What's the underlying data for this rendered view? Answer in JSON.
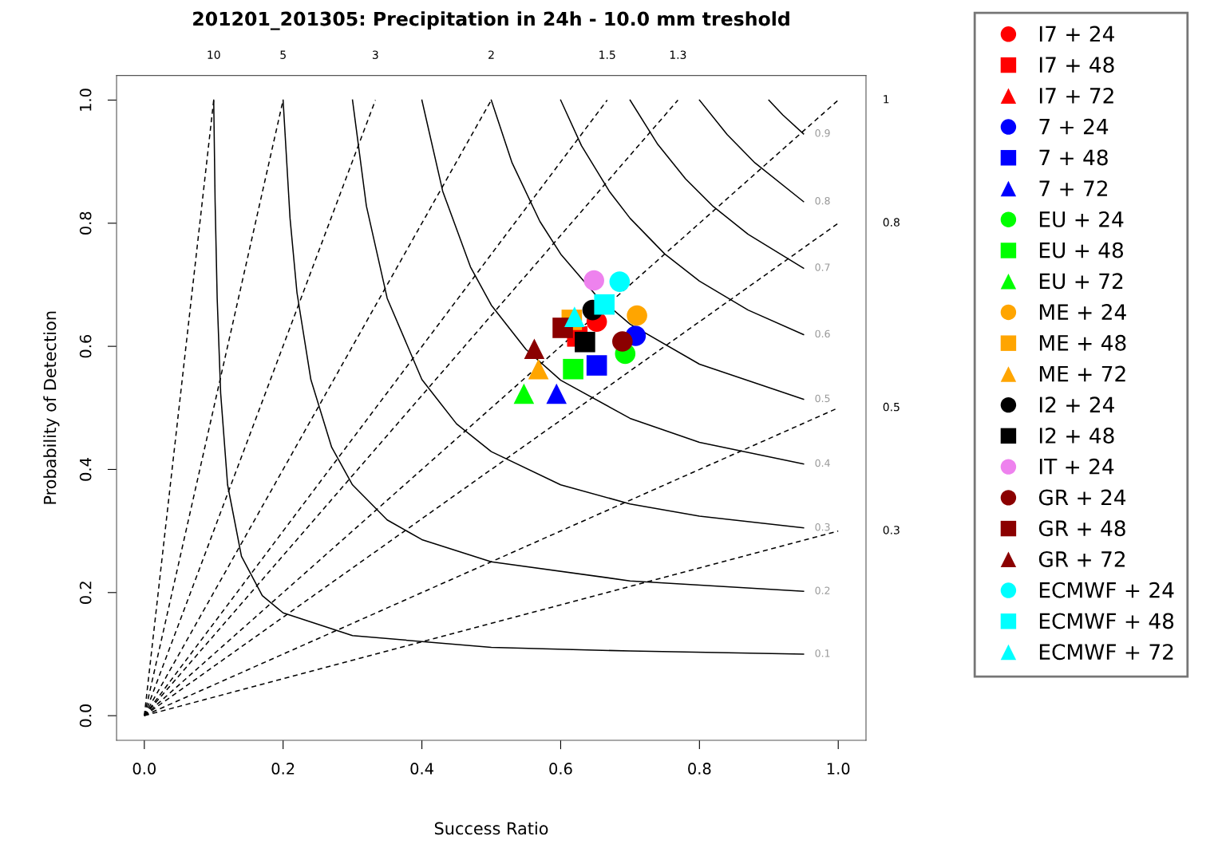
{
  "chart_data": {
    "type": "scatter",
    "title": "201201_201305: Precipitation in 24h - 10.0 mm treshold",
    "xlabel": "Success Ratio",
    "ylabel": "Probability of Detection",
    "xlim": [
      -0.04,
      1.04
    ],
    "ylim": [
      -0.04,
      1.04
    ],
    "xticks": [
      {
        "value": 0,
        "label": "0.0"
      },
      {
        "value": 0.2,
        "label": "0.2"
      },
      {
        "value": 0.4,
        "label": "0.4"
      },
      {
        "value": 0.6,
        "label": "0.6"
      },
      {
        "value": 0.8,
        "label": "0.8"
      },
      {
        "value": 1,
        "label": "1.0"
      }
    ],
    "yticks": [
      {
        "value": 0,
        "label": "0.0"
      },
      {
        "value": 0.2,
        "label": "0.2"
      },
      {
        "value": 0.4,
        "label": "0.4"
      },
      {
        "value": 0.6,
        "label": "0.6"
      },
      {
        "value": 0.8,
        "label": "0.8"
      },
      {
        "value": 1,
        "label": "1.0"
      }
    ],
    "grid": false,
    "legend": "right",
    "series": [
      {
        "type": "line",
        "color": "#000000",
        "line_style": "dashed",
        "x": [
          0,
          0.1
        ],
        "values": [
          0,
          1
        ]
      },
      {
        "type": "line",
        "color": "#000000",
        "line_style": "dashed",
        "x": [
          0,
          0.2
        ],
        "values": [
          0,
          1
        ]
      },
      {
        "type": "line",
        "color": "#000000",
        "line_style": "dashed",
        "x": [
          0,
          0.333
        ],
        "values": [
          0,
          1
        ]
      },
      {
        "type": "line",
        "color": "#000000",
        "line_style": "dashed",
        "x": [
          0,
          0.5
        ],
        "values": [
          0,
          1
        ]
      },
      {
        "type": "line",
        "color": "#000000",
        "line_style": "dashed",
        "x": [
          0,
          0.667
        ],
        "values": [
          0,
          1
        ]
      },
      {
        "type": "line",
        "color": "#000000",
        "line_style": "dashed",
        "x": [
          0,
          0.769
        ],
        "values": [
          0,
          1
        ]
      },
      {
        "type": "line",
        "color": "#000000",
        "line_style": "dashed",
        "x": [
          0,
          1
        ],
        "values": [
          0,
          1
        ]
      },
      {
        "type": "line",
        "color": "#000000",
        "line_style": "dashed",
        "x": [
          0,
          1
        ],
        "values": [
          0,
          0.8
        ]
      },
      {
        "type": "line",
        "color": "#000000",
        "line_style": "dashed",
        "x": [
          0,
          1
        ],
        "values": [
          0,
          0.5
        ]
      },
      {
        "type": "line",
        "color": "#000000",
        "line_style": "dashed",
        "x": [
          0,
          1
        ],
        "values": [
          0,
          0.3
        ]
      },
      {
        "type": "line",
        "color": "#000000",
        "line_style": "solid",
        "x": [
          0.1,
          0.102,
          0.105,
          0.11,
          0.12,
          0.14,
          0.17,
          0.2,
          0.3,
          0.5,
          0.7,
          0.95
        ],
        "values": [
          1,
          0.836,
          0.678,
          0.524,
          0.375,
          0.259,
          0.195,
          0.167,
          0.13,
          0.111,
          0.105,
          0.1
        ]
      },
      {
        "type": "line",
        "color": "#000000",
        "line_style": "solid",
        "x": [
          0.2,
          0.21,
          0.22,
          0.24,
          0.27,
          0.3,
          0.35,
          0.4,
          0.5,
          0.7,
          0.95
        ],
        "values": [
          1,
          0.808,
          0.687,
          0.546,
          0.436,
          0.375,
          0.318,
          0.286,
          0.25,
          0.219,
          0.202
        ]
      },
      {
        "type": "line",
        "color": "#000000",
        "line_style": "solid",
        "x": [
          0.3,
          0.32,
          0.35,
          0.4,
          0.45,
          0.5,
          0.6,
          0.7,
          0.8,
          0.95
        ],
        "values": [
          1,
          0.828,
          0.678,
          0.546,
          0.474,
          0.429,
          0.375,
          0.344,
          0.324,
          0.305
        ]
      },
      {
        "type": "line",
        "color": "#000000",
        "line_style": "solid",
        "x": [
          0.4,
          0.43,
          0.47,
          0.5,
          0.55,
          0.6,
          0.7,
          0.8,
          0.95
        ],
        "values": [
          1,
          0.852,
          0.729,
          0.667,
          0.595,
          0.545,
          0.483,
          0.444,
          0.409
        ]
      },
      {
        "type": "line",
        "color": "#000000",
        "line_style": "solid",
        "x": [
          0.5,
          0.53,
          0.57,
          0.6,
          0.65,
          0.7,
          0.8,
          0.95
        ],
        "values": [
          1,
          0.898,
          0.803,
          0.75,
          0.684,
          0.636,
          0.571,
          0.514
        ]
      },
      {
        "type": "line",
        "color": "#000000",
        "line_style": "solid",
        "x": [
          0.6,
          0.63,
          0.67,
          0.7,
          0.75,
          0.8,
          0.87,
          0.95
        ],
        "values": [
          1,
          0.926,
          0.852,
          0.808,
          0.75,
          0.706,
          0.659,
          0.619
        ]
      },
      {
        "type": "line",
        "color": "#000000",
        "line_style": "solid",
        "x": [
          0.7,
          0.74,
          0.78,
          0.82,
          0.87,
          0.95
        ],
        "values": [
          1,
          0.928,
          0.872,
          0.827,
          0.782,
          0.727
        ]
      },
      {
        "type": "line",
        "color": "#000000",
        "line_style": "solid",
        "x": [
          0.8,
          0.84,
          0.88,
          0.95
        ],
        "values": [
          1,
          0.944,
          0.898,
          0.835
        ]
      },
      {
        "type": "line",
        "color": "#000000",
        "line_style": "solid",
        "x": [
          0.9,
          0.92,
          0.95
        ],
        "values": [
          1,
          0.976,
          0.945
        ]
      },
      {
        "name": "I7 + 24",
        "color": "#ff0000",
        "marker": "circle",
        "x": [
          0.652
        ],
        "values": [
          0.64
        ]
      },
      {
        "name": "I7 + 48",
        "color": "#ff0000",
        "marker": "square",
        "x": [
          0.624
        ],
        "values": [
          0.616
        ]
      },
      {
        "name": "I7 + 72",
        "color": "#ff0000",
        "marker": "triangle",
        "x": [
          null
        ],
        "values": [
          null
        ]
      },
      {
        "name": "7 + 24",
        "color": "#0000ff",
        "marker": "circle",
        "x": [
          0.708
        ],
        "values": [
          0.617
        ]
      },
      {
        "name": "7 + 48",
        "color": "#0000ff",
        "marker": "square",
        "x": [
          0.652
        ],
        "values": [
          0.569
        ]
      },
      {
        "name": "7 + 72",
        "color": "#0000ff",
        "marker": "triangle",
        "x": [
          0.594
        ],
        "values": [
          0.523
        ]
      },
      {
        "name": "EU + 24",
        "color": "#00ff00",
        "marker": "circle",
        "x": [
          0.693
        ],
        "values": [
          0.588
        ]
      },
      {
        "name": "EU + 48",
        "color": "#00ff00",
        "marker": "square",
        "x": [
          0.618
        ],
        "values": [
          0.563
        ]
      },
      {
        "name": "EU + 72",
        "color": "#00ff00",
        "marker": "triangle",
        "x": [
          0.547
        ],
        "values": [
          0.523
        ]
      },
      {
        "name": "ME + 24",
        "color": "#ffa500",
        "marker": "circle",
        "x": [
          0.71
        ],
        "values": [
          0.65
        ]
      },
      {
        "name": "ME + 48",
        "color": "#ffa500",
        "marker": "square",
        "x": [
          0.616
        ],
        "values": [
          0.643
        ]
      },
      {
        "name": "ME + 72",
        "color": "#ffa500",
        "marker": "triangle",
        "x": [
          0.568
        ],
        "values": [
          0.563
        ]
      },
      {
        "name": "I2 + 24",
        "color": "#000000",
        "marker": "circle",
        "x": [
          0.646
        ],
        "values": [
          0.659
        ]
      },
      {
        "name": "I2 + 48",
        "color": "#000000",
        "marker": "square",
        "x": [
          0.635
        ],
        "values": [
          0.607
        ]
      },
      {
        "name": "IT + 24",
        "color": "#ee82ee",
        "marker": "circle",
        "x": [
          0.648
        ],
        "values": [
          0.707
        ]
      },
      {
        "name": "GR + 24",
        "color": "#8b0000",
        "marker": "circle",
        "x": [
          0.689
        ],
        "values": [
          0.608
        ]
      },
      {
        "name": "GR + 48",
        "color": "#8b0000",
        "marker": "square",
        "x": [
          0.603
        ],
        "values": [
          0.63
        ]
      },
      {
        "name": "GR + 72",
        "color": "#8b0000",
        "marker": "triangle",
        "x": [
          0.562
        ],
        "values": [
          0.596
        ]
      },
      {
        "name": "ECMWF + 24",
        "color": "#00ffff",
        "marker": "circle",
        "x": [
          0.685
        ],
        "values": [
          0.705
        ]
      },
      {
        "name": "ECMWF + 48",
        "color": "#00ffff",
        "marker": "square",
        "x": [
          0.663
        ],
        "values": [
          0.668
        ]
      },
      {
        "name": "ECMWF + 72",
        "color": "#00ffff",
        "marker": "triangle",
        "x": [
          0.62
        ],
        "values": [
          0.648
        ]
      }
    ],
    "annotations": [
      "10",
      "5",
      "3",
      "2",
      "1.5",
      "1.3",
      "1",
      "0.8",
      "0.5",
      "0.3",
      "0.1",
      "0.2",
      "0.3",
      "0.4",
      "0.5",
      "0.6",
      "0.7",
      "0.8",
      "0.9"
    ]
  }
}
